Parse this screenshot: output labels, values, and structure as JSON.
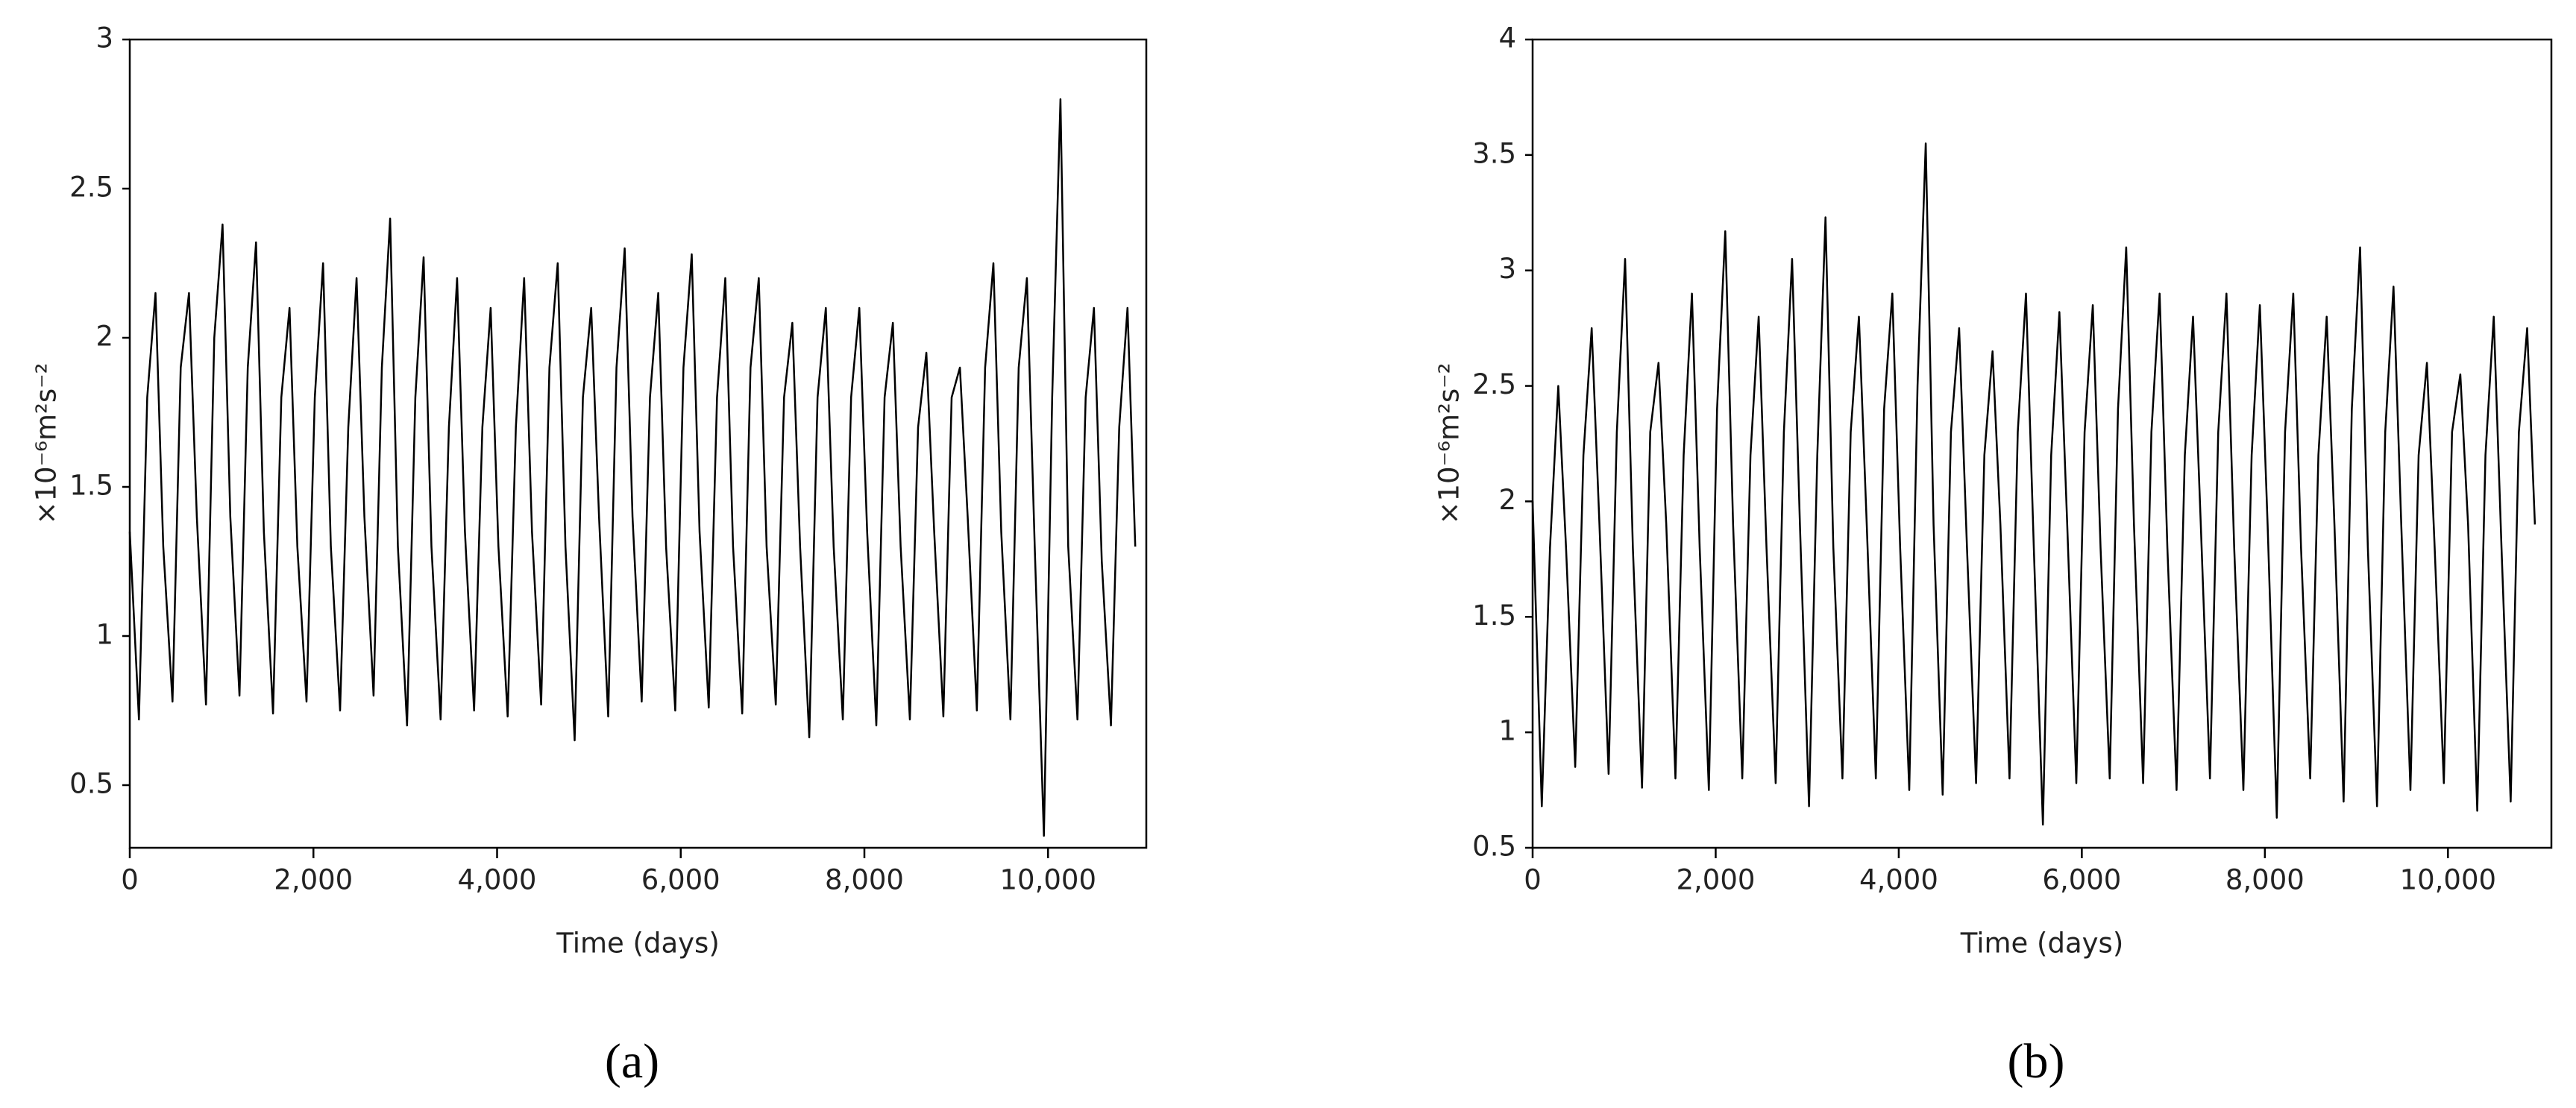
{
  "chart_data": [
    {
      "type": "line",
      "panel_label": "(a)",
      "x_label": "Time (days)",
      "y_label": "×10⁻⁶m²s⁻²",
      "color": "#000000",
      "xlim": [
        0,
        11070
      ],
      "ylim": [
        0.29,
        3
      ],
      "xticks": [
        0,
        {
          "value": 2000,
          "label": "2,000"
        },
        {
          "value": 4000,
          "label": "4,000"
        },
        {
          "value": 6000,
          "label": "6,000"
        },
        {
          "value": 8000,
          "label": "8,000"
        },
        {
          "value": 10000,
          "label": "10,000"
        }
      ],
      "yticks": [
        0.5,
        1,
        1.5,
        2,
        2.5,
        3
      ],
      "x": [
        0,
        100,
        190,
        280,
        365,
        465,
        555,
        645,
        730,
        830,
        920,
        1010,
        1095,
        1195,
        1285,
        1375,
        1460,
        1560,
        1650,
        1740,
        1825,
        1925,
        2015,
        2105,
        2190,
        2290,
        2380,
        2470,
        2555,
        2655,
        2745,
        2835,
        2920,
        3020,
        3110,
        3200,
        3285,
        3385,
        3475,
        3565,
        3650,
        3750,
        3840,
        3930,
        4015,
        4115,
        4205,
        4295,
        4380,
        4480,
        4570,
        4660,
        4745,
        4845,
        4935,
        5025,
        5110,
        5210,
        5300,
        5390,
        5475,
        5575,
        5665,
        5755,
        5840,
        5940,
        6030,
        6120,
        6205,
        6305,
        6395,
        6485,
        6570,
        6670,
        6760,
        6850,
        6935,
        7035,
        7125,
        7215,
        7300,
        7400,
        7490,
        7580,
        7665,
        7765,
        7855,
        7945,
        8030,
        8130,
        8220,
        8310,
        8395,
        8495,
        8585,
        8675,
        8760,
        8860,
        8950,
        9040,
        9125,
        9225,
        9315,
        9405,
        9490,
        9590,
        9680,
        9770,
        9855,
        9955,
        10045,
        10135,
        10220,
        10320,
        10410,
        10500,
        10585,
        10685,
        10775,
        10865,
        10950
      ],
      "values": [
        1.35,
        0.72,
        1.8,
        2.15,
        1.3,
        0.78,
        1.9,
        2.15,
        1.4,
        0.77,
        2.0,
        2.38,
        1.4,
        0.8,
        1.9,
        2.32,
        1.35,
        0.74,
        1.8,
        2.1,
        1.3,
        0.78,
        1.8,
        2.25,
        1.3,
        0.75,
        1.7,
        2.2,
        1.4,
        0.8,
        1.9,
        2.4,
        1.3,
        0.7,
        1.8,
        2.27,
        1.3,
        0.72,
        1.7,
        2.2,
        1.35,
        0.75,
        1.7,
        2.1,
        1.3,
        0.73,
        1.7,
        2.2,
        1.35,
        0.77,
        1.9,
        2.25,
        1.3,
        0.65,
        1.8,
        2.1,
        1.4,
        0.73,
        1.9,
        2.3,
        1.4,
        0.78,
        1.8,
        2.15,
        1.3,
        0.75,
        1.9,
        2.28,
        1.35,
        0.76,
        1.8,
        2.2,
        1.3,
        0.74,
        1.9,
        2.2,
        1.3,
        0.77,
        1.8,
        2.05,
        1.3,
        0.66,
        1.8,
        2.1,
        1.3,
        0.72,
        1.8,
        2.1,
        1.35,
        0.7,
        1.8,
        2.05,
        1.3,
        0.72,
        1.7,
        1.95,
        1.35,
        0.73,
        1.8,
        1.9,
        1.4,
        0.75,
        1.9,
        2.25,
        1.35,
        0.72,
        1.9,
        2.2,
        1.3,
        0.33,
        1.8,
        2.8,
        1.3,
        0.72,
        1.8,
        2.1,
        1.25,
        0.7,
        1.7,
        2.1,
        1.3
      ]
    },
    {
      "type": "line",
      "panel_label": "(b)",
      "x_label": "Time (days)",
      "y_label": "×10⁻⁶m²s⁻²",
      "color": "#000000",
      "xlim": [
        0,
        11130
      ],
      "ylim": [
        0.5,
        4
      ],
      "xticks": [
        0,
        {
          "value": 2000,
          "label": "2,000"
        },
        {
          "value": 4000,
          "label": "4,000"
        },
        {
          "value": 6000,
          "label": "6,000"
        },
        {
          "value": 8000,
          "label": "8,000"
        },
        {
          "value": 10000,
          "label": "10,000"
        }
      ],
      "yticks": [
        0.5,
        1,
        1.5,
        2,
        2.5,
        3,
        3.5,
        4
      ],
      "x": [
        0,
        100,
        190,
        280,
        365,
        465,
        555,
        645,
        730,
        830,
        920,
        1010,
        1095,
        1195,
        1285,
        1375,
        1460,
        1560,
        1650,
        1740,
        1825,
        1925,
        2015,
        2105,
        2190,
        2290,
        2380,
        2470,
        2555,
        2655,
        2745,
        2835,
        2920,
        3020,
        3110,
        3200,
        3285,
        3385,
        3475,
        3565,
        3650,
        3750,
        3840,
        3930,
        4015,
        4115,
        4205,
        4295,
        4380,
        4480,
        4570,
        4660,
        4745,
        4845,
        4935,
        5025,
        5110,
        5210,
        5300,
        5390,
        5475,
        5575,
        5665,
        5755,
        5840,
        5940,
        6030,
        6120,
        6205,
        6305,
        6395,
        6485,
        6570,
        6670,
        6760,
        6850,
        6935,
        7035,
        7125,
        7215,
        7300,
        7400,
        7490,
        7580,
        7665,
        7765,
        7855,
        7945,
        8030,
        8130,
        8220,
        8310,
        8395,
        8495,
        8585,
        8675,
        8760,
        8860,
        8950,
        9040,
        9125,
        9225,
        9315,
        9405,
        9490,
        9590,
        9680,
        9770,
        9855,
        9955,
        10045,
        10135,
        10220,
        10320,
        10410,
        10500,
        10585,
        10685,
        10775,
        10865,
        10950
      ],
      "values": [
        2.0,
        0.68,
        1.8,
        2.5,
        1.8,
        0.85,
        2.2,
        2.75,
        1.9,
        0.82,
        2.3,
        3.05,
        1.8,
        0.76,
        2.3,
        2.6,
        1.9,
        0.8,
        2.2,
        2.9,
        1.8,
        0.75,
        2.4,
        3.17,
        1.9,
        0.8,
        2.2,
        2.8,
        1.8,
        0.78,
        2.3,
        3.05,
        1.9,
        0.68,
        2.2,
        3.23,
        1.8,
        0.8,
        2.3,
        2.8,
        1.9,
        0.8,
        2.4,
        2.9,
        1.8,
        0.75,
        2.5,
        3.55,
        1.9,
        0.73,
        2.3,
        2.75,
        1.8,
        0.78,
        2.2,
        2.65,
        1.9,
        0.8,
        2.3,
        2.9,
        1.8,
        0.6,
        2.2,
        2.82,
        1.9,
        0.78,
        2.3,
        2.85,
        1.8,
        0.8,
        2.4,
        3.1,
        1.9,
        0.78,
        2.3,
        2.9,
        1.8,
        0.75,
        2.2,
        2.8,
        1.9,
        0.8,
        2.3,
        2.9,
        1.8,
        0.75,
        2.2,
        2.85,
        1.9,
        0.63,
        2.3,
        2.9,
        1.8,
        0.8,
        2.2,
        2.8,
        1.9,
        0.7,
        2.4,
        3.1,
        1.8,
        0.68,
        2.3,
        2.93,
        1.9,
        0.75,
        2.2,
        2.6,
        1.8,
        0.78,
        2.3,
        2.55,
        1.9,
        0.66,
        2.2,
        2.8,
        1.8,
        0.7,
        2.3,
        2.75,
        1.9
      ]
    }
  ]
}
